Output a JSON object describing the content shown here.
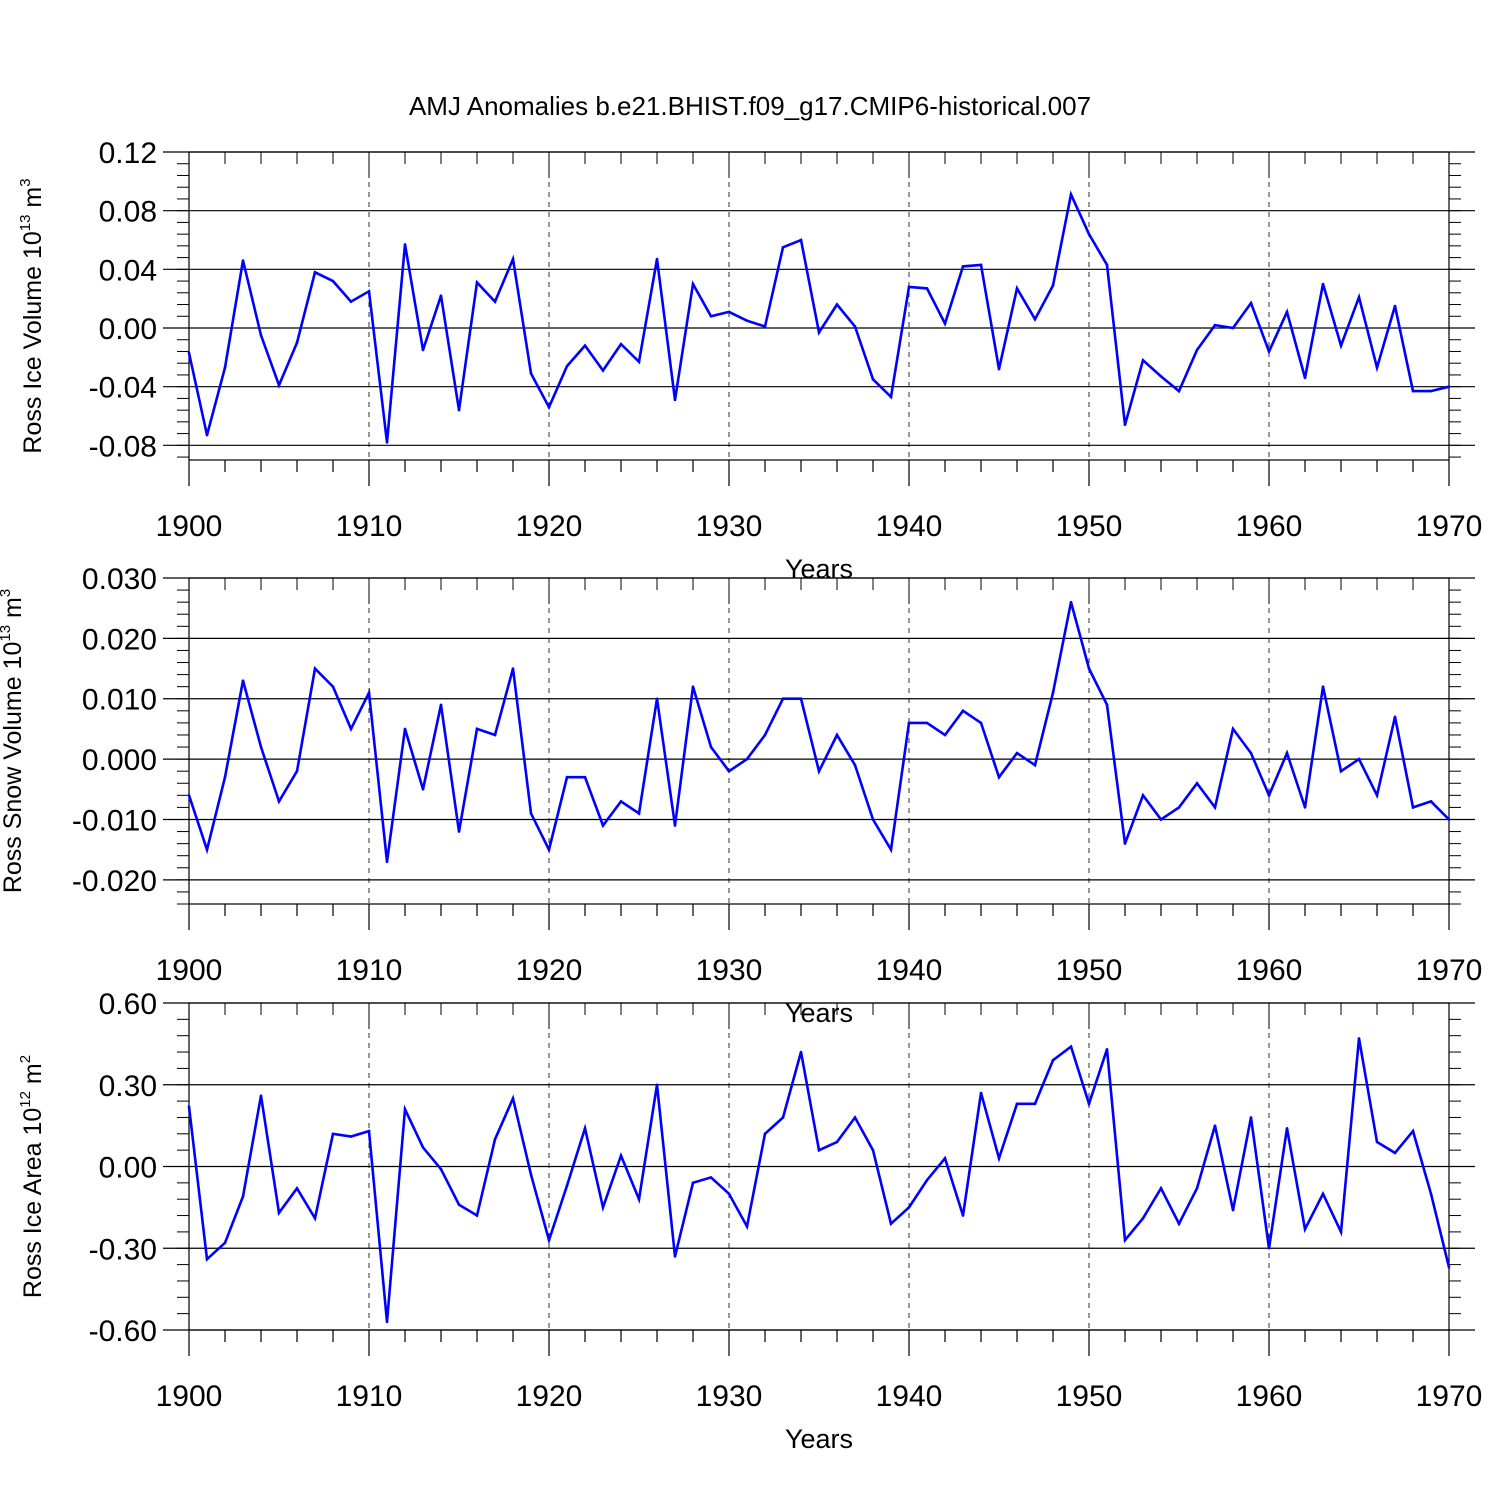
{
  "chart_data": [
    {
      "type": "line",
      "title": "AMJ Anomalies b.e21.BHIST.f09_g17.CMIP6-historical.007",
      "xlabel": "Years",
      "ylabel_text": "Ross Ice Volume 10",
      "ylabel_exp": "13",
      "ylabel_unit": " m",
      "ylabel_unit_exp": "3",
      "xlim": [
        1900,
        1970
      ],
      "ylim": [
        -0.09,
        0.12
      ],
      "x_ticks": [
        "1900",
        "1910",
        "1920",
        "1930",
        "1940",
        "1950",
        "1960",
        "1970"
      ],
      "y_ticks": [
        "0.12",
        "0.08",
        "0.04",
        "0.00",
        "-0.04",
        "-0.08"
      ],
      "y_tick_values": [
        0.12,
        0.08,
        0.04,
        0.0,
        -0.04,
        -0.08
      ],
      "line_color": "#0000ff",
      "grid": "dashed vertical at decades",
      "x": [
        1900,
        1901,
        1902,
        1903,
        1904,
        1905,
        1906,
        1907,
        1908,
        1909,
        1910,
        1911,
        1912,
        1913,
        1914,
        1915,
        1916,
        1917,
        1918,
        1919,
        1920,
        1921,
        1922,
        1923,
        1924,
        1925,
        1926,
        1927,
        1928,
        1929,
        1930,
        1931,
        1932,
        1933,
        1934,
        1935,
        1936,
        1937,
        1938,
        1939,
        1940,
        1941,
        1942,
        1943,
        1944,
        1945,
        1946,
        1947,
        1948,
        1949,
        1950,
        1951,
        1952,
        1953,
        1954,
        1955,
        1956,
        1957,
        1958,
        1959,
        1960,
        1961,
        1962,
        1963,
        1964,
        1965,
        1966,
        1967,
        1968,
        1969,
        1970
      ],
      "values": [
        -0.017,
        -0.073,
        -0.027,
        0.046,
        -0.005,
        -0.039,
        -0.01,
        0.038,
        0.032,
        0.018,
        0.025,
        -0.078,
        0.057,
        -0.015,
        0.022,
        -0.056,
        0.031,
        0.018,
        0.047,
        -0.031,
        -0.054,
        -0.026,
        -0.012,
        -0.029,
        -0.011,
        -0.023,
        0.047,
        -0.049,
        0.03,
        0.008,
        0.011,
        0.005,
        0.001,
        0.055,
        0.06,
        -0.003,
        0.016,
        0.001,
        -0.035,
        -0.047,
        0.028,
        0.027,
        0.003,
        0.042,
        0.043,
        -0.028,
        0.027,
        0.006,
        0.029,
        0.091,
        0.064,
        0.043,
        -0.066,
        -0.022,
        -0.033,
        -0.043,
        -0.015,
        0.002,
        0.0,
        0.017,
        -0.016,
        0.011,
        -0.034,
        0.03,
        -0.012,
        0.021,
        -0.027,
        0.015,
        -0.043,
        -0.043,
        -0.04
      ]
    },
    {
      "type": "line",
      "xlabel": "Years",
      "ylabel_text": "Ross Snow Volume 10",
      "ylabel_exp": "13",
      "ylabel_unit": " m",
      "ylabel_unit_exp": "3",
      "xlim": [
        1900,
        1970
      ],
      "ylim": [
        -0.024,
        0.03
      ],
      "x_ticks": [
        "1900",
        "1910",
        "1920",
        "1930",
        "1940",
        "1950",
        "1960",
        "1970"
      ],
      "y_ticks": [
        "0.030",
        "0.020",
        "0.010",
        "0.000",
        "-0.010",
        "-0.020"
      ],
      "y_tick_values": [
        0.03,
        0.02,
        0.01,
        0.0,
        -0.01,
        -0.02
      ],
      "line_color": "#0000ff",
      "grid": "dashed vertical at decades",
      "x": [
        1900,
        1901,
        1902,
        1903,
        1904,
        1905,
        1906,
        1907,
        1908,
        1909,
        1910,
        1911,
        1912,
        1913,
        1914,
        1915,
        1916,
        1917,
        1918,
        1919,
        1920,
        1921,
        1922,
        1923,
        1924,
        1925,
        1926,
        1927,
        1928,
        1929,
        1930,
        1931,
        1932,
        1933,
        1934,
        1935,
        1936,
        1937,
        1938,
        1939,
        1940,
        1941,
        1942,
        1943,
        1944,
        1945,
        1946,
        1947,
        1948,
        1949,
        1950,
        1951,
        1952,
        1953,
        1954,
        1955,
        1956,
        1957,
        1958,
        1959,
        1960,
        1961,
        1962,
        1963,
        1964,
        1965,
        1966,
        1967,
        1968,
        1969,
        1970
      ],
      "values": [
        -0.006,
        -0.015,
        -0.003,
        0.013,
        0.002,
        -0.007,
        -0.002,
        0.015,
        0.012,
        0.005,
        0.011,
        -0.017,
        0.005,
        -0.005,
        0.009,
        -0.012,
        0.005,
        0.004,
        0.015,
        -0.009,
        -0.015,
        -0.003,
        -0.003,
        -0.011,
        -0.007,
        -0.009,
        0.01,
        -0.011,
        0.012,
        0.002,
        -0.002,
        0.0,
        0.004,
        0.01,
        0.01,
        -0.002,
        0.004,
        -0.001,
        -0.01,
        -0.015,
        0.006,
        0.006,
        0.004,
        0.008,
        0.006,
        -0.003,
        0.001,
        -0.001,
        0.011,
        0.026,
        0.015,
        0.009,
        -0.014,
        -0.006,
        -0.01,
        -0.008,
        -0.004,
        -0.008,
        0.005,
        0.001,
        -0.006,
        0.001,
        -0.008,
        0.012,
        -0.002,
        0.0,
        -0.006,
        0.007,
        -0.008,
        -0.007,
        -0.01
      ]
    },
    {
      "type": "line",
      "xlabel": "Years",
      "ylabel_text": "Ross Ice Area 10",
      "ylabel_exp": "12",
      "ylabel_unit": " m",
      "ylabel_unit_exp": "2",
      "xlim": [
        1900,
        1970
      ],
      "ylim": [
        -0.6,
        0.6
      ],
      "x_ticks": [
        "1900",
        "1910",
        "1920",
        "1930",
        "1940",
        "1950",
        "1960",
        "1970"
      ],
      "y_ticks": [
        "0.60",
        "0.30",
        "0.00",
        "-0.30",
        "-0.60"
      ],
      "y_tick_values": [
        0.6,
        0.3,
        0.0,
        -0.3,
        -0.6
      ],
      "line_color": "#0000ff",
      "grid": "dashed vertical at decades",
      "x": [
        1900,
        1901,
        1902,
        1903,
        1904,
        1905,
        1906,
        1907,
        1908,
        1909,
        1910,
        1911,
        1912,
        1913,
        1914,
        1915,
        1916,
        1917,
        1918,
        1919,
        1920,
        1921,
        1922,
        1923,
        1924,
        1925,
        1926,
        1927,
        1928,
        1929,
        1930,
        1931,
        1932,
        1933,
        1934,
        1935,
        1936,
        1937,
        1938,
        1939,
        1940,
        1941,
        1942,
        1943,
        1944,
        1945,
        1946,
        1947,
        1948,
        1949,
        1950,
        1951,
        1952,
        1953,
        1954,
        1955,
        1956,
        1957,
        1958,
        1959,
        1960,
        1961,
        1962,
        1963,
        1964,
        1965,
        1966,
        1967,
        1968,
        1969,
        1970
      ],
      "values": [
        0.22,
        -0.34,
        -0.28,
        -0.11,
        0.26,
        -0.17,
        -0.08,
        -0.19,
        0.12,
        0.11,
        0.13,
        -0.57,
        0.21,
        0.07,
        -0.01,
        -0.14,
        -0.18,
        0.1,
        0.25,
        -0.03,
        -0.27,
        -0.07,
        0.14,
        -0.15,
        0.04,
        -0.12,
        0.3,
        -0.33,
        -0.06,
        -0.04,
        -0.1,
        -0.22,
        0.12,
        0.18,
        0.42,
        0.06,
        0.09,
        0.18,
        0.06,
        -0.21,
        -0.15,
        -0.05,
        0.03,
        -0.18,
        0.27,
        0.03,
        0.23,
        0.23,
        0.39,
        0.44,
        0.23,
        0.43,
        -0.27,
        -0.19,
        -0.08,
        -0.21,
        -0.08,
        0.15,
        -0.16,
        0.18,
        -0.3,
        0.14,
        -0.23,
        -0.1,
        -0.24,
        0.47,
        0.09,
        0.05,
        0.13,
        -0.1,
        -0.37
      ]
    }
  ]
}
